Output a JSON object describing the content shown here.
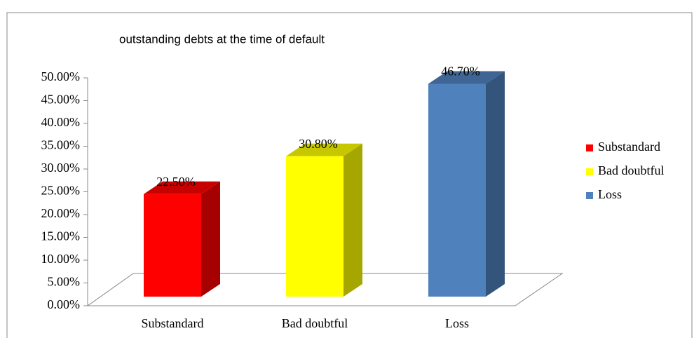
{
  "chart_data": {
    "type": "bar3d",
    "title": "outstanding debts at the time of default",
    "categories": [
      "Substandard",
      "Bad doubtful",
      "Loss"
    ],
    "values": [
      22.5,
      30.8,
      46.7
    ],
    "value_labels": [
      "22.50%",
      "30.80%",
      "46.70%"
    ],
    "colors": [
      "#ff0000",
      "#ffff00",
      "#4f81bd"
    ],
    "ylim": [
      0,
      50
    ],
    "yticks": [
      {
        "value": 0,
        "label": "0.00%"
      },
      {
        "value": 5,
        "label": "5.00%"
      },
      {
        "value": 10,
        "label": "10.00%"
      },
      {
        "value": 15,
        "label": "15.00%"
      },
      {
        "value": 20,
        "label": "20.00%"
      },
      {
        "value": 25,
        "label": "25.00%"
      },
      {
        "value": 30,
        "label": "30.00%"
      },
      {
        "value": 35,
        "label": "35.00%"
      },
      {
        "value": 40,
        "label": "40.00%"
      },
      {
        "value": 45,
        "label": "45.00%"
      },
      {
        "value": 50,
        "label": "50.00%"
      }
    ],
    "legend": "right"
  }
}
